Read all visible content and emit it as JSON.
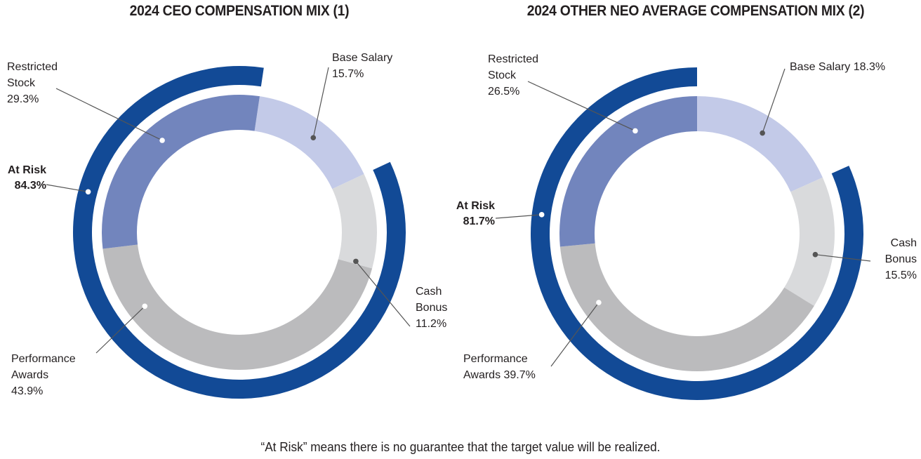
{
  "chart_data": [
    {
      "type": "pie",
      "subtype": "donut-with-outer-arc",
      "title": "2024 CEO COMPENSATION MIX (1)",
      "slices": [
        {
          "name": "Base Salary",
          "value": 15.7,
          "color": "#c3cae8",
          "label_lines": [
            "Base Salary",
            "15.7%"
          ],
          "dot": "dark"
        },
        {
          "name": "Cash Bonus",
          "value": 11.2,
          "color": "#d9dadc",
          "label_lines": [
            "Cash",
            "Bonus",
            "11.2%"
          ],
          "dot": "dark"
        },
        {
          "name": "Performance Awards",
          "value": 43.9,
          "color": "#bbbbbd",
          "label_lines": [
            "Performance",
            "Awards",
            "43.9%"
          ],
          "dot": "light"
        },
        {
          "name": "Restricted Stock",
          "value": 29.3,
          "color": "#7285bd",
          "label_lines": [
            "Restricted",
            "Stock",
            "29.3%"
          ],
          "dot": "light"
        }
      ],
      "outer_arc": {
        "name": "At Risk",
        "value": 84.3,
        "color": "#124a96",
        "label_lines": [
          "At Risk",
          "84.3%"
        ]
      }
    },
    {
      "type": "pie",
      "subtype": "donut-with-outer-arc",
      "title": "2024 OTHER NEO AVERAGE COMPENSATION MIX (2)",
      "slices": [
        {
          "name": "Base Salary",
          "value": 18.3,
          "color": "#c3cae8",
          "label_lines": [
            "Base Salary 18.3%"
          ],
          "dot": "dark"
        },
        {
          "name": "Cash Bonus",
          "value": 15.5,
          "color": "#d9dadc",
          "label_lines": [
            "Cash",
            "Bonus",
            "15.5%"
          ],
          "dot": "dark"
        },
        {
          "name": "Performance Awards",
          "value": 39.7,
          "color": "#bbbbbd",
          "label_lines": [
            "Performance",
            "Awards 39.7%"
          ],
          "dot": "light"
        },
        {
          "name": "Restricted Stock",
          "value": 26.5,
          "color": "#7285bd",
          "label_lines": [
            "Restricted",
            "Stock",
            "26.5%"
          ],
          "dot": "light"
        }
      ],
      "outer_arc": {
        "name": "At Risk",
        "value": 81.7,
        "color": "#124a96",
        "label_lines": [
          "At Risk",
          "81.7%"
        ]
      }
    }
  ],
  "footnote": "“At Risk” means there is no guarantee that the target value will be realized."
}
